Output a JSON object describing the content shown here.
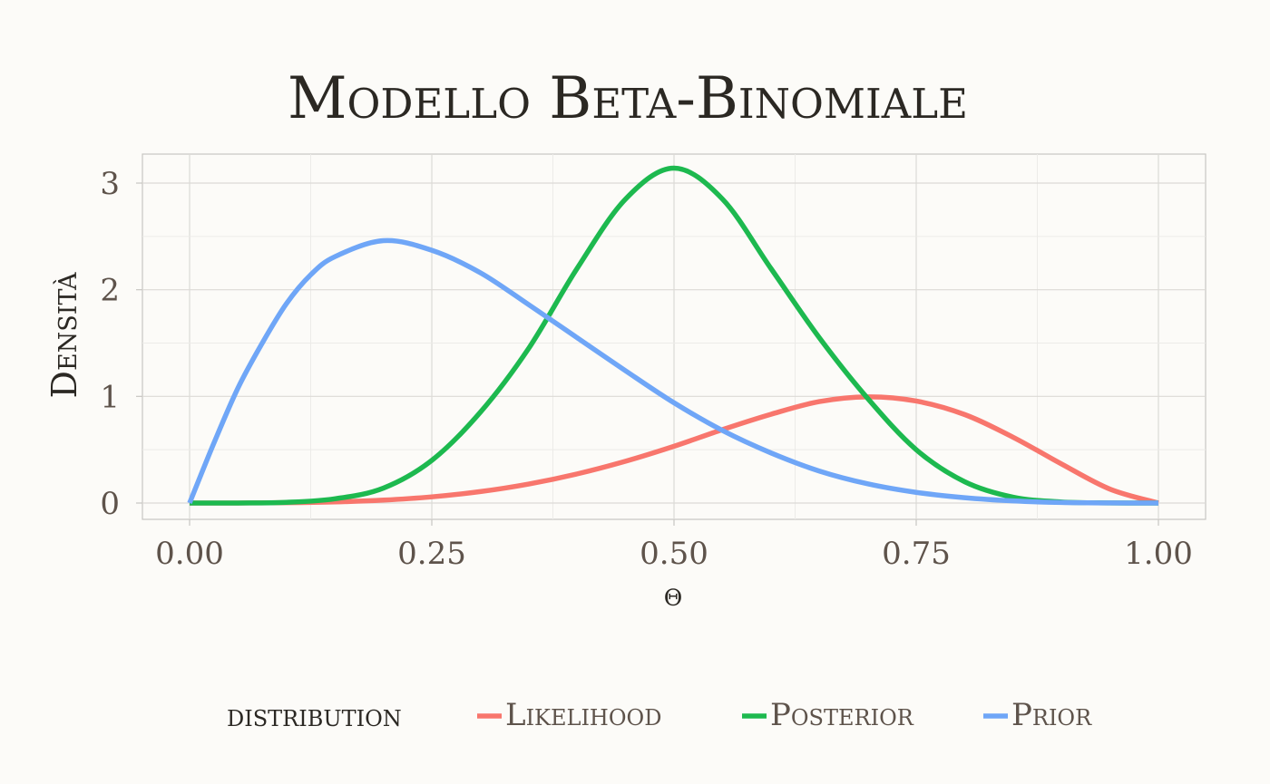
{
  "chart_data": {
    "type": "line",
    "title": "Modello Beta-Binomiale",
    "xlabel": "θ",
    "ylabel": "Densità",
    "xlim": [
      0,
      1
    ],
    "ylim": [
      -0.15,
      3.3
    ],
    "grid": true,
    "x_ticks": [
      "0.00",
      "0.25",
      "0.50",
      "0.75",
      "1.00"
    ],
    "x_tick_values": [
      0,
      0.25,
      0.5,
      0.75,
      1.0
    ],
    "y_ticks": [
      "0",
      "1",
      "2",
      "3"
    ],
    "y_tick_values": [
      0,
      1,
      2,
      3
    ],
    "legend": {
      "title": "distribution",
      "position": "bottom",
      "entries": [
        "Likelihood",
        "Posterior",
        "Prior"
      ]
    },
    "series": [
      {
        "name": "Likelihood",
        "color": "#f8766d",
        "x": [
          0,
          0.05,
          0.1,
          0.15,
          0.2,
          0.25,
          0.3,
          0.35,
          0.4,
          0.45,
          0.5,
          0.55,
          0.6,
          0.65,
          0.7,
          0.75,
          0.8,
          0.85,
          0.9,
          0.95,
          1.0
        ],
        "values": [
          0,
          0.0003,
          0.0027,
          0.0103,
          0.0273,
          0.058,
          0.1071,
          0.1781,
          0.2731,
          0.392,
          0.5323,
          0.6886,
          0.8322,
          0.9512,
          0.9957,
          0.9563,
          0.8297,
          0.6171,
          0.3661,
          0.1303,
          0
        ]
      },
      {
        "name": "Posterior",
        "color": "#1db94f",
        "x": [
          0,
          0.05,
          0.1,
          0.15,
          0.2,
          0.25,
          0.3,
          0.35,
          0.4,
          0.45,
          0.5,
          0.55,
          0.6,
          0.65,
          0.7,
          0.75,
          0.8,
          0.85,
          0.9,
          0.95,
          1.0
        ],
        "values": [
          0,
          0.0002,
          0.0062,
          0.04,
          0.14,
          0.4,
          0.85,
          1.45,
          2.2,
          2.85,
          3.14,
          2.85,
          2.2,
          1.55,
          0.98,
          0.5,
          0.2,
          0.055,
          0.01,
          0.001,
          0
        ]
      },
      {
        "name": "Prior",
        "color": "#6fa6f7",
        "x": [
          0,
          0.025,
          0.05,
          0.075,
          0.1,
          0.125,
          0.15,
          0.2,
          0.25,
          0.3,
          0.35,
          0.4,
          0.45,
          0.5,
          0.55,
          0.6,
          0.65,
          0.7,
          0.75,
          0.8,
          0.85,
          0.9,
          0.95,
          1.0
        ],
        "values": [
          0,
          0.56,
          1.08,
          1.5,
          1.87,
          2.14,
          2.31,
          2.46,
          2.37,
          2.16,
          1.86,
          1.55,
          1.24,
          0.94,
          0.68,
          0.47,
          0.3,
          0.18,
          0.1,
          0.05,
          0.02,
          0.005,
          0.001,
          0
        ]
      }
    ]
  }
}
